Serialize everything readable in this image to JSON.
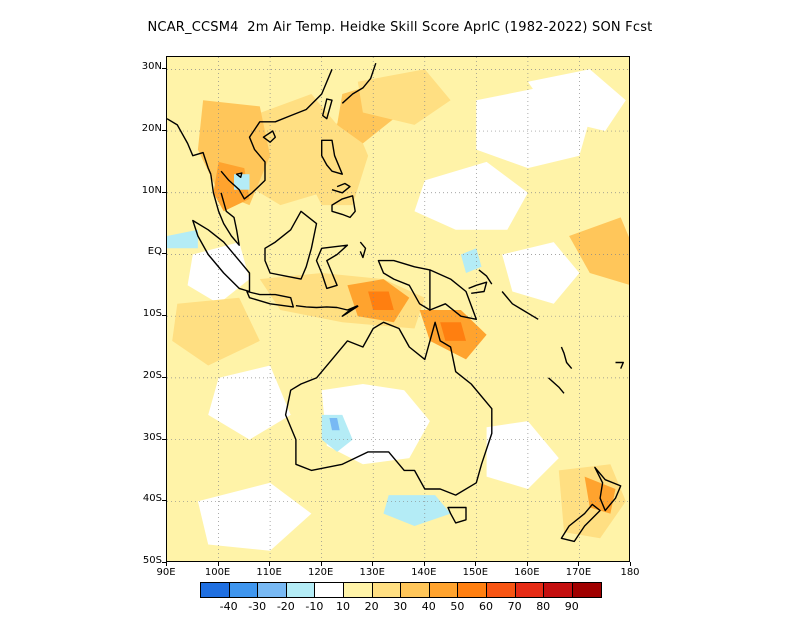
{
  "title": "NCAR_CCSM4  2m Air Temp. Heidke Skill Score AprIC (1982-2022) SON Fcst",
  "map": {
    "region": "Southeast Asia / Maritime Continent / Australia",
    "lon_range": [
      90,
      180
    ],
    "lat_range": [
      -50,
      32
    ],
    "lon_ticks": [
      "90E",
      "100E",
      "110E",
      "120E",
      "130E",
      "140E",
      "150E",
      "160E",
      "170E",
      "180"
    ],
    "lat_ticks": [
      "30N",
      "20N",
      "10N",
      "EQ",
      "10S",
      "20S",
      "30S",
      "40S",
      "50S"
    ],
    "grid": "dotted, every 10 degrees"
  },
  "colorbar": {
    "colors": [
      "#1f6fe0",
      "#3f96ef",
      "#78b9f4",
      "#b4ecf6",
      "#ffffff",
      "#fff3a8",
      "#ffdf82",
      "#ffc65a",
      "#ffa32e",
      "#ff7f10",
      "#f85513",
      "#e62b15",
      "#c40f0f",
      "#a00000"
    ],
    "labels": [
      "-40",
      "-30",
      "-20",
      "-10",
      "10",
      "20",
      "30",
      "40",
      "50",
      "60",
      "70",
      "80",
      "90"
    ]
  }
}
